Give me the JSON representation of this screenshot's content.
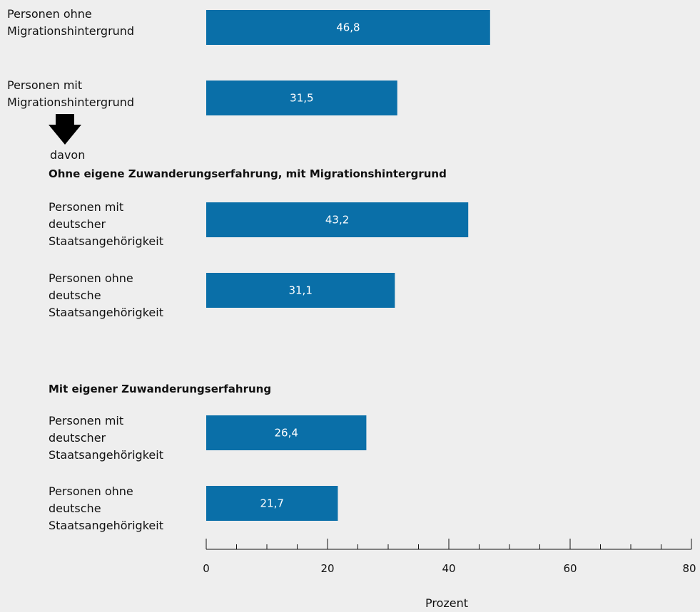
{
  "chart_data": {
    "type": "bar",
    "orientation": "horizontal",
    "categories": [
      "Personen ohne\nMigrationshintergrund",
      "Personen mit\nMigrationshintergrund",
      "Personen mit\ndeutscher\nStaatsangehörigkeit",
      "Personen ohne\ndeutsche\nStaatsangehörigkeit",
      "Personen mit\ndeutscher\nStaatsangehörigkeit",
      "Personen ohne\ndeutsche\nStaatsangehörigkeit"
    ],
    "values": [
      46.8,
      31.5,
      43.2,
      31.1,
      26.4,
      21.7
    ],
    "value_labels": [
      "46,8",
      "31,5",
      "43,2",
      "31,1",
      "26,4",
      "21,7"
    ],
    "xlabel": "Prozent",
    "xlim": [
      0,
      80
    ],
    "x_ticks": [
      0,
      20,
      40,
      60,
      80
    ],
    "x_tick_labels": [
      "0",
      "20",
      "40",
      "60",
      "80"
    ],
    "x_minor_step": 5,
    "bar_color": "#0a6fa8",
    "annotations": {
      "davon": "davon",
      "group1_heading": "Ohne eigene Zuwanderungserfahrung, mit Migrationshintergrund",
      "group2_heading": "Mit eigener Zuwanderungserfahrung"
    },
    "grid": false,
    "legend": "none"
  }
}
